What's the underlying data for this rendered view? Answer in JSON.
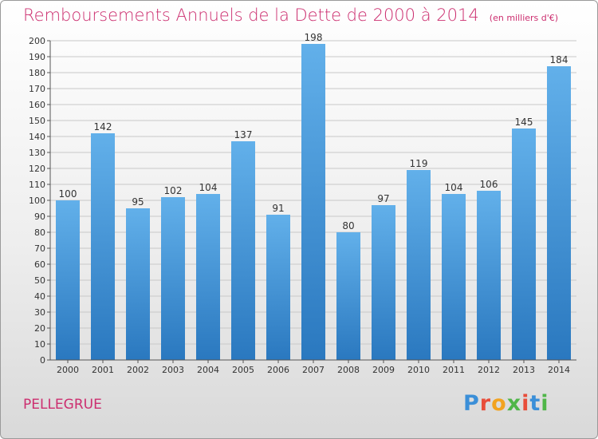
{
  "header": {
    "title": "Remboursements Annuels de la Dette de 2000 à 2014",
    "unit": "(en milliers d'€)"
  },
  "footer": {
    "commune": "PELLEGRUE",
    "logo": "Proxiti"
  },
  "colors": {
    "title": "#cc2e6f",
    "bar_top": "#62b0ea",
    "bar_bottom": "#2a78bf",
    "grid": "#c8c8c8"
  },
  "chart_data": {
    "type": "bar",
    "title": "Remboursements Annuels de la Dette de 2000 à 2014",
    "subtitle": "(en milliers d'€)",
    "categories": [
      "2000",
      "2001",
      "2002",
      "2003",
      "2004",
      "2005",
      "2006",
      "2007",
      "2008",
      "2009",
      "2010",
      "2011",
      "2012",
      "2013",
      "2014"
    ],
    "values": [
      100,
      142,
      95,
      102,
      104,
      137,
      91,
      198,
      80,
      97,
      119,
      104,
      106,
      145,
      184
    ],
    "ylim": [
      0,
      200
    ],
    "yticks": [
      0,
      10,
      20,
      30,
      40,
      50,
      60,
      70,
      80,
      90,
      100,
      110,
      120,
      130,
      140,
      150,
      160,
      170,
      180,
      190,
      200
    ],
    "grid": true,
    "legend": "none",
    "data_labels": true
  }
}
